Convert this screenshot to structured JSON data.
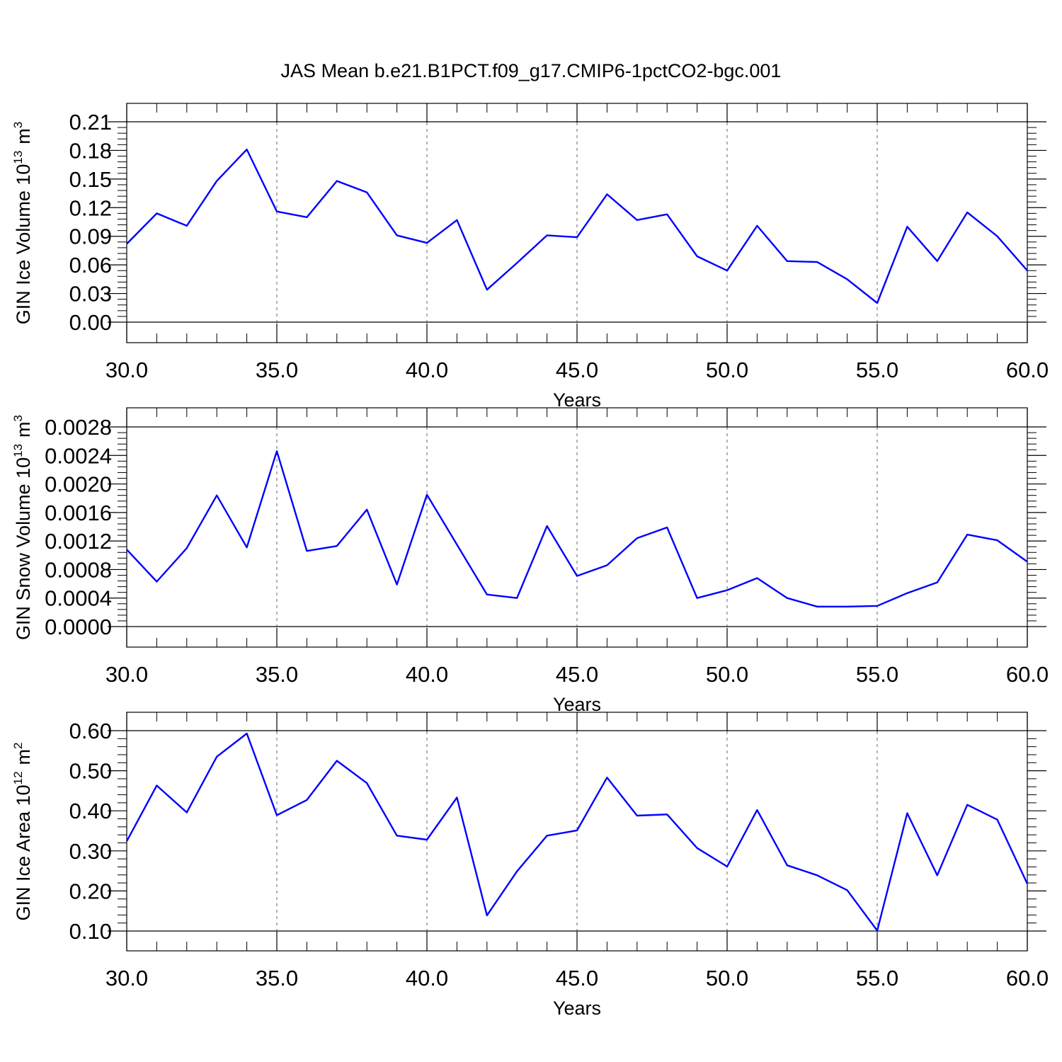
{
  "figure_title": "JAS Mean b.e21.B1PCT.f09_g17.CMIP6-1pctCO2-bgc.001",
  "line_color": "#0000ff",
  "chart_data": [
    {
      "type": "line",
      "ylabel": "GIN Ice Volume 10",
      "ylabel_sup": "13",
      "ylabel_unit": "m",
      "ylabel_unit_sup": "3",
      "xlabel": "Years",
      "xlim": [
        30,
        60
      ],
      "ylim": [
        0.0,
        0.21
      ],
      "x_ticks": [
        "30.0",
        "35.0",
        "40.0",
        "45.0",
        "50.0",
        "55.0",
        "60.0"
      ],
      "y_ticks": [
        "0.00",
        "0.03",
        "0.06",
        "0.09",
        "0.12",
        "0.15",
        "0.18",
        "0.21"
      ],
      "x": [
        30,
        31,
        32,
        33,
        34,
        35,
        36,
        37,
        38,
        39,
        40,
        41,
        42,
        43,
        44,
        45,
        46,
        47,
        48,
        49,
        50,
        51,
        52,
        53,
        54,
        55,
        56,
        57,
        58,
        59,
        60
      ],
      "values": [
        0.082,
        0.114,
        0.101,
        0.148,
        0.181,
        0.116,
        0.11,
        0.148,
        0.136,
        0.091,
        0.083,
        0.107,
        0.034,
        0.062,
        0.091,
        0.089,
        0.134,
        0.107,
        0.113,
        0.069,
        0.054,
        0.101,
        0.064,
        0.063,
        0.045,
        0.02,
        0.1,
        0.064,
        0.115,
        0.09,
        0.054
      ]
    },
    {
      "type": "line",
      "ylabel": "GIN Snow Volume 10",
      "ylabel_sup": "13",
      "ylabel_unit": "m",
      "ylabel_unit_sup": "3",
      "xlabel": "Years",
      "xlim": [
        30,
        60
      ],
      "ylim": [
        0.0,
        0.0028
      ],
      "x_ticks": [
        "30.0",
        "35.0",
        "40.0",
        "45.0",
        "50.0",
        "55.0",
        "60.0"
      ],
      "y_ticks": [
        "0.0000",
        "0.0004",
        "0.0008",
        "0.0012",
        "0.0016",
        "0.0020",
        "0.0024",
        "0.0028"
      ],
      "x": [
        30,
        31,
        32,
        33,
        34,
        35,
        36,
        37,
        38,
        39,
        40,
        41,
        42,
        43,
        44,
        45,
        46,
        47,
        48,
        49,
        50,
        51,
        52,
        53,
        54,
        55,
        56,
        57,
        58,
        59,
        60
      ],
      "values": [
        0.00108,
        0.00063,
        0.0011,
        0.00184,
        0.00111,
        0.00246,
        0.00106,
        0.00113,
        0.00164,
        0.00059,
        0.00185,
        0.00115,
        0.00045,
        0.0004,
        0.00141,
        0.00071,
        0.00086,
        0.00124,
        0.00139,
        0.0004,
        0.00051,
        0.00068,
        0.0004,
        0.00028,
        0.00028,
        0.00029,
        0.00047,
        0.00062,
        0.00129,
        0.00121,
        0.00091
      ]
    },
    {
      "type": "line",
      "ylabel": "GIN Ice Area 10",
      "ylabel_sup": "12",
      "ylabel_unit": "m",
      "ylabel_unit_sup": "2",
      "xlabel": "Years",
      "xlim": [
        30,
        60
      ],
      "ylim": [
        0.1,
        0.6
      ],
      "x_ticks": [
        "30.0",
        "35.0",
        "40.0",
        "45.0",
        "50.0",
        "55.0",
        "60.0"
      ],
      "y_ticks": [
        "0.10",
        "0.20",
        "0.30",
        "0.40",
        "0.50",
        "0.60"
      ],
      "x": [
        30,
        31,
        32,
        33,
        34,
        35,
        36,
        37,
        38,
        39,
        40,
        41,
        42,
        43,
        44,
        45,
        46,
        47,
        48,
        49,
        50,
        51,
        52,
        53,
        54,
        55,
        56,
        57,
        58,
        59,
        60
      ],
      "values": [
        0.324,
        0.463,
        0.396,
        0.535,
        0.593,
        0.389,
        0.427,
        0.525,
        0.469,
        0.338,
        0.328,
        0.433,
        0.139,
        0.249,
        0.338,
        0.351,
        0.483,
        0.388,
        0.391,
        0.307,
        0.261,
        0.402,
        0.264,
        0.239,
        0.202,
        0.101,
        0.394,
        0.239,
        0.415,
        0.378,
        0.218
      ]
    }
  ]
}
